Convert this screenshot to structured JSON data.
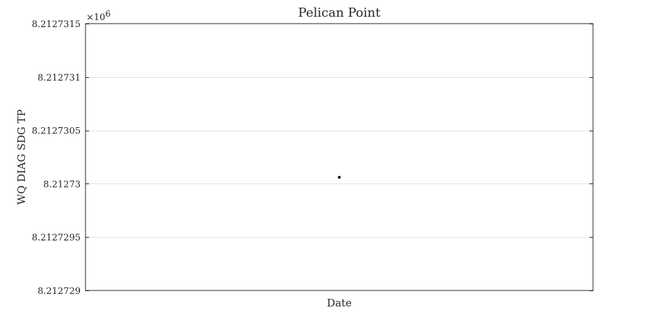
{
  "chart_data": {
    "type": "scatter",
    "title": "Pelican Point",
    "xlabel": "Date",
    "ylabel": "WQ DIAG SDG TP",
    "y_multiplier_label": "×10",
    "y_multiplier_exponent": "6",
    "yticks": [
      8.212729,
      8.2127295,
      8.21273,
      8.2127305,
      8.212731,
      8.2127315
    ],
    "ytick_labels": [
      "8.212729",
      "8.2127295",
      "8.21273",
      "8.2127305",
      "8.212731",
      "8.2127315"
    ],
    "ylim": [
      8.212729,
      8.2127315
    ],
    "xlim": [
      0,
      1
    ],
    "grid": "horizontal",
    "series": [
      {
        "x": [
          0.5
        ],
        "y": [
          8.21273006
        ],
        "color": "#000000"
      }
    ]
  }
}
